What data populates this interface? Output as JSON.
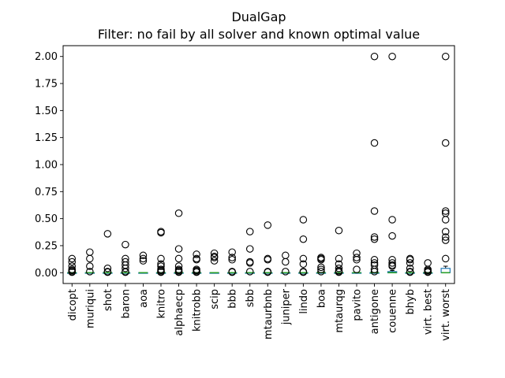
{
  "chart_data": {
    "type": "box",
    "title": "DualGap",
    "subtitle": "Filter: no fail by all solver and known optimal value",
    "xlabel": "",
    "ylabel": "",
    "ylim": [
      -0.1,
      2.1
    ],
    "yticks": [
      "0.00",
      "0.25",
      "0.50",
      "0.75",
      "1.00",
      "1.25",
      "1.50",
      "1.75",
      "2.00"
    ],
    "grid": false,
    "colors": {
      "box": "#1f77b4",
      "median": "#2ca02c",
      "whisker": "#000000",
      "flier": "#000000"
    },
    "categories": [
      "dicopt",
      "muriqui",
      "shot",
      "baron",
      "aoa",
      "knitro",
      "alphaecp",
      "knitrobb",
      "scip",
      "bbb",
      "sbb",
      "mtaurbnb",
      "juniper",
      "lindo",
      "boa",
      "mtaurqg",
      "pavito",
      "antigone",
      "couenne",
      "bhyb",
      "virt. best",
      "virt. worst"
    ],
    "series": [
      {
        "q1": 0,
        "median": 0,
        "q3": 0,
        "whislo": 0,
        "whishi": 0,
        "fliers": [
          0.13,
          0.1,
          0.06,
          0.03,
          0.02,
          0.01,
          0.005
        ]
      },
      {
        "q1": 0,
        "median": 0,
        "q3": 0,
        "whislo": 0,
        "whishi": 0,
        "fliers": [
          0.19,
          0.13,
          0.06,
          0.01
        ]
      },
      {
        "q1": 0,
        "median": 0,
        "q3": 0,
        "whislo": 0,
        "whishi": 0,
        "fliers": [
          0.36,
          0.04,
          0.01,
          0.005
        ]
      },
      {
        "q1": 0,
        "median": 0,
        "q3": 0,
        "whislo": 0,
        "whishi": 0,
        "fliers": [
          0.26,
          0.13,
          0.1,
          0.07,
          0.04,
          0.01,
          0.005
        ]
      },
      {
        "q1": 0,
        "median": 0,
        "q3": 0,
        "whislo": 0,
        "whishi": 0,
        "fliers": [
          0.16,
          0.13,
          0.11
        ]
      },
      {
        "q1": 0,
        "median": 0,
        "q3": 0,
        "whislo": 0,
        "whishi": 0,
        "fliers": [
          0.38,
          0.37,
          0.13,
          0.08,
          0.06,
          0.03,
          0.02,
          0.01,
          0.005
        ]
      },
      {
        "q1": 0,
        "median": 0,
        "q3": 0,
        "whislo": 0,
        "whishi": 0,
        "fliers": [
          0.55,
          0.22,
          0.13,
          0.06,
          0.03,
          0.02,
          0.01,
          0.005
        ]
      },
      {
        "q1": 0,
        "median": 0,
        "q3": 0,
        "whislo": 0,
        "whishi": 0,
        "fliers": [
          0.17,
          0.13,
          0.12,
          0.03,
          0.02,
          0.01,
          0.005
        ]
      },
      {
        "q1": 0,
        "median": 0,
        "q3": 0,
        "whislo": 0,
        "whishi": 0,
        "fliers": [
          0.18,
          0.15,
          0.14,
          0.11
        ]
      },
      {
        "q1": 0,
        "median": 0,
        "q3": 0,
        "whislo": 0,
        "whishi": 0,
        "fliers": [
          0.19,
          0.14,
          0.12,
          0.01,
          0.005
        ]
      },
      {
        "q1": 0,
        "median": 0,
        "q3": 0,
        "whislo": 0,
        "whishi": 0,
        "fliers": [
          0.38,
          0.22,
          0.1,
          0.09,
          0.01
        ]
      },
      {
        "q1": 0,
        "median": 0,
        "q3": 0,
        "whislo": 0,
        "whishi": 0,
        "fliers": [
          0.44,
          0.13,
          0.12,
          0.01,
          0.005
        ]
      },
      {
        "q1": 0,
        "median": 0,
        "q3": 0,
        "whislo": 0,
        "whishi": 0,
        "fliers": [
          0.16,
          0.1,
          0.01
        ]
      },
      {
        "q1": 0,
        "median": 0,
        "q3": 0,
        "whislo": 0,
        "whishi": 0,
        "fliers": [
          0.49,
          0.31,
          0.13,
          0.08,
          0.01,
          0.005
        ]
      },
      {
        "q1": 0,
        "median": 0,
        "q3": 0,
        "whislo": 0,
        "whishi": 0,
        "fliers": [
          0.14,
          0.13,
          0.12,
          0.05,
          0.03,
          0.01
        ]
      },
      {
        "q1": 0,
        "median": 0,
        "q3": 0,
        "whislo": 0,
        "whishi": 0,
        "fliers": [
          0.39,
          0.13,
          0.08,
          0.04,
          0.02,
          0.01,
          0.005
        ]
      },
      {
        "q1": 0,
        "median": 0,
        "q3": 0,
        "whislo": 0,
        "whishi": 0,
        "fliers": [
          0.18,
          0.14,
          0.12,
          0.03
        ]
      },
      {
        "q1": 0,
        "median": 0,
        "q3": 0,
        "whislo": 0,
        "whishi": 0,
        "fliers": [
          2.0,
          1.2,
          0.57,
          0.33,
          0.31,
          0.12,
          0.09,
          0.07,
          0.03,
          0.01
        ]
      },
      {
        "q1": 0,
        "median": 0,
        "q3": 0.01,
        "whislo": 0,
        "whishi": 0.02,
        "fliers": [
          2.0,
          0.49,
          0.34,
          0.12,
          0.09,
          0.07,
          0.06
        ]
      },
      {
        "q1": 0,
        "median": 0,
        "q3": 0,
        "whislo": 0,
        "whishi": 0,
        "fliers": [
          0.13,
          0.12,
          0.09,
          0.04,
          0.01,
          0.005
        ]
      },
      {
        "q1": 0,
        "median": 0,
        "q3": 0,
        "whislo": 0,
        "whishi": 0,
        "fliers": [
          0.09,
          0.03,
          0.02,
          0.01,
          0.005
        ]
      },
      {
        "q1": 0,
        "median": 0,
        "q3": 0.04,
        "whislo": 0,
        "whishi": 0.06,
        "fliers": [
          2.0,
          1.2,
          0.57,
          0.55,
          0.49,
          0.38,
          0.33,
          0.3,
          0.13
        ]
      }
    ]
  }
}
